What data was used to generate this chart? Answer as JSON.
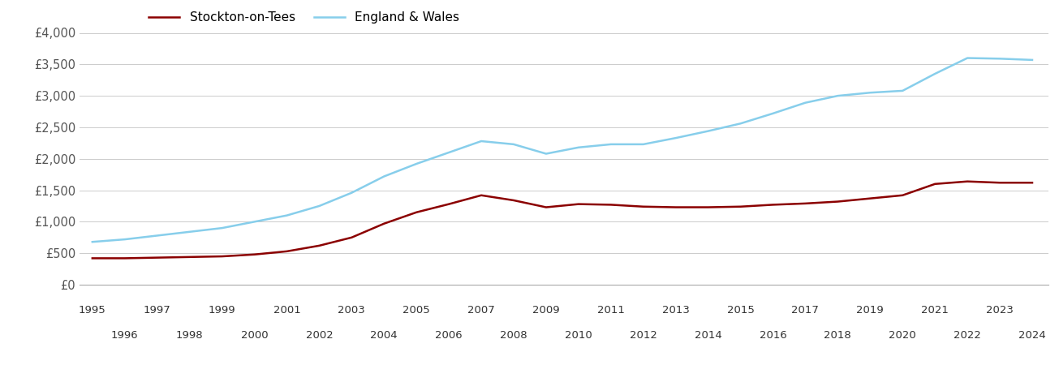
{
  "years": [
    1995,
    1996,
    1997,
    1998,
    1999,
    2000,
    2001,
    2002,
    2003,
    2004,
    2005,
    2006,
    2007,
    2008,
    2009,
    2010,
    2011,
    2012,
    2013,
    2014,
    2015,
    2016,
    2017,
    2018,
    2019,
    2020,
    2021,
    2022,
    2023,
    2024
  ],
  "stockton": [
    420,
    420,
    430,
    440,
    450,
    480,
    530,
    620,
    750,
    970,
    1150,
    1280,
    1420,
    1340,
    1230,
    1280,
    1270,
    1240,
    1230,
    1230,
    1240,
    1270,
    1290,
    1320,
    1370,
    1420,
    1600,
    1640,
    1620,
    1620
  ],
  "england_wales": [
    680,
    720,
    780,
    840,
    900,
    1000,
    1100,
    1250,
    1460,
    1720,
    1920,
    2100,
    2280,
    2230,
    2080,
    2180,
    2230,
    2230,
    2330,
    2440,
    2560,
    2720,
    2890,
    3000,
    3050,
    3080,
    3350,
    3600,
    3590,
    3570
  ],
  "stockton_color": "#8B0000",
  "england_wales_color": "#87CEEB",
  "legend_labels": [
    "Stockton-on-Tees",
    "England & Wales"
  ],
  "ylim": [
    0,
    4000
  ],
  "yticks": [
    0,
    500,
    1000,
    1500,
    2000,
    2500,
    3000,
    3500,
    4000
  ],
  "ytick_labels": [
    "£0",
    "£500",
    "£1,000",
    "£1,500",
    "£2,000",
    "£2,500",
    "£3,000",
    "£3,500",
    "£4,000"
  ],
  "background_color": "#ffffff",
  "grid_color": "#cccccc",
  "line_width": 1.8,
  "odd_years": [
    1995,
    1997,
    1999,
    2001,
    2003,
    2005,
    2007,
    2009,
    2011,
    2013,
    2015,
    2017,
    2019,
    2021,
    2023
  ],
  "even_years": [
    1996,
    1998,
    2000,
    2002,
    2004,
    2006,
    2008,
    2010,
    2012,
    2014,
    2016,
    2018,
    2020,
    2022,
    2024
  ]
}
